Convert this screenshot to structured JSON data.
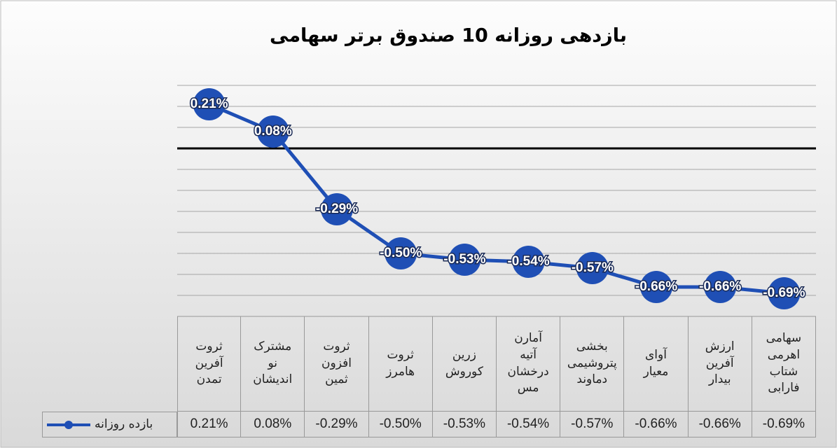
{
  "chart_data": {
    "type": "line",
    "title": "بازدهی روزانه 10 صندوق برتر سهامی",
    "categories": [
      "ثروت آفرین تمدن",
      "مشترک نو اندیشان",
      "ثروت افزون ثمین",
      "ثروت هامرز",
      "زرین کوروش",
      "آمارن آتیه درخشان مس",
      "بخشی پتروشیمی دماوند",
      "آوای معیار",
      "ارزش آفرین بیدار",
      "سهامی اهرمی شتاب فارابی"
    ],
    "series": [
      {
        "name": "بازده روزانه",
        "color": "#1f4fb5",
        "values": [
          0.21,
          0.08,
          -0.29,
          -0.5,
          -0.53,
          -0.54,
          -0.57,
          -0.66,
          -0.66,
          -0.69
        ],
        "value_labels": [
          "0.21%",
          "0.08%",
          "-0.29%",
          "-0.50%",
          "-0.53%",
          "-0.54%",
          "-0.57%",
          "-0.66%",
          "-0.66%",
          "-0.69%"
        ]
      }
    ],
    "ylim": [
      -0.7,
      0.3
    ],
    "yticks": [
      -0.7,
      -0.6,
      -0.5,
      -0.4,
      -0.3,
      -0.2,
      -0.1,
      0,
      0.1,
      0.2,
      0.3
    ],
    "grid": true
  }
}
